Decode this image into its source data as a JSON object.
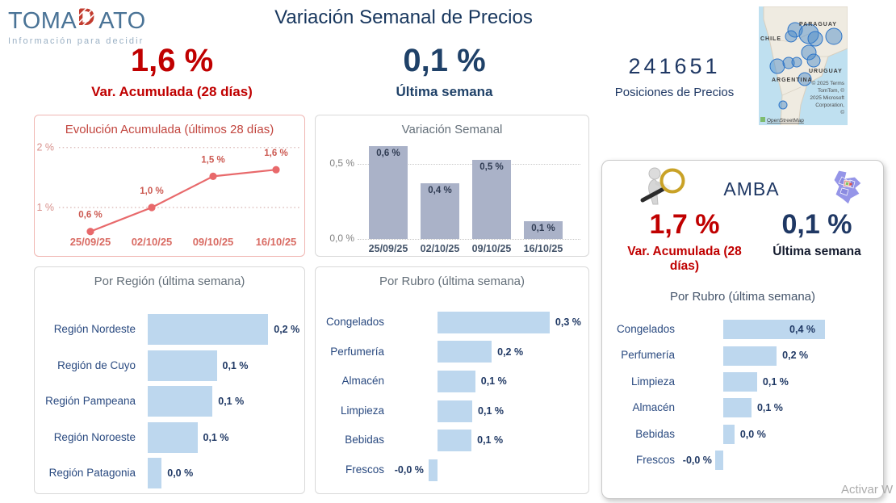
{
  "logo": {
    "text_pre": "TOMA",
    "text_d": "D",
    "text_post": "ATO",
    "tagline": "Información para decidir"
  },
  "header": {
    "title": "Variación Semanal de Precios"
  },
  "kpis": {
    "acumulada": {
      "value": "1,6 %",
      "label": "Var. Acumulada (28 días)"
    },
    "ultima_semana": {
      "value": "0,1 %",
      "label": "Última semana"
    },
    "posiciones": {
      "value": "241651",
      "label": "Posiciones de Precios"
    }
  },
  "map": {
    "countries": [
      "CHILE",
      "PARAGUAY",
      "URUGUAY",
      "ARGENTINA"
    ],
    "attribution": [
      "© 2025 Terms",
      "TomTom, ©",
      "2025 Microsoft",
      "Corporation,",
      "©"
    ],
    "osm": "OpenStreetMap"
  },
  "amba": {
    "title": "AMBA",
    "acumulada": {
      "value": "1,7 %",
      "label": "Var. Acumulada (28 días)"
    },
    "ultima_semana": {
      "value": "0,1 %",
      "label": "Última semana"
    }
  },
  "watermark": "Activar W",
  "chart_data": [
    {
      "id": "evolucion",
      "type": "line",
      "title": "Evolución Acumulada (últimos 28 días)",
      "x": [
        "25/09/25",
        "02/10/25",
        "09/10/25",
        "16/10/25"
      ],
      "values": [
        0.6,
        1.0,
        1.52,
        1.63
      ],
      "point_labels": [
        "0,6 %",
        "1,0 %",
        "1,5 %",
        "1,6 %"
      ],
      "yticks": [
        {
          "v": 1,
          "label": "1 %"
        },
        {
          "v": 2,
          "label": "2 %"
        }
      ],
      "ylim": [
        0.2,
        2.16
      ],
      "grid": true,
      "color": "#E8696B"
    },
    {
      "id": "semanal",
      "type": "bar",
      "title": "Variación Semanal",
      "categories": [
        "25/09/25",
        "02/10/25",
        "09/10/25",
        "16/10/25"
      ],
      "values": [
        0.62,
        0.37,
        0.53,
        0.12
      ],
      "bar_labels": [
        "0,6 %",
        "0,4 %",
        "0,5 %",
        "0,1 %"
      ],
      "yticks": [
        {
          "v": 0,
          "label": "0,0 %"
        },
        {
          "v": 0.5,
          "label": "0,5 %"
        }
      ],
      "grid": true,
      "color": "#AAB2C8"
    },
    {
      "id": "region",
      "type": "hbar",
      "title": "Por Región (última semana)",
      "categories": [
        "Región Nordeste",
        "Región de Cuyo",
        "Región Pampeana",
        "Región Noroeste",
        "Región Patagonia"
      ],
      "values": [
        0.199,
        0.114,
        0.107,
        0.082,
        0.023
      ],
      "bar_labels": [
        "0,2 %",
        "0,1 %",
        "0,1 %",
        "0,1 %",
        "0,0 %"
      ],
      "color": "#BDD7EE"
    },
    {
      "id": "rubro",
      "type": "hbar",
      "title": "Por Rubro (última semana)",
      "categories": [
        "Congelados",
        "Perfumería",
        "Almacén",
        "Limpieza",
        "Bebidas",
        "Frescos"
      ],
      "values": [
        0.3,
        0.145,
        0.101,
        0.093,
        0.091,
        -0.024
      ],
      "bar_labels": [
        "0,3 %",
        "0,2 %",
        "0,1 %",
        "0,1 %",
        "0,1 %",
        "-0,0 %"
      ],
      "color": "#BDD7EE"
    },
    {
      "id": "amba_rubro",
      "type": "hbar",
      "title": "Por Rubro (última semana)",
      "categories": [
        "Congelados",
        "Perfumería",
        "Limpieza",
        "Almacén",
        "Bebidas",
        "Frescos"
      ],
      "values": [
        0.4,
        0.21,
        0.133,
        0.111,
        0.044,
        -0.032
      ],
      "bar_labels": [
        "0,4 %",
        "0,2 %",
        "0,1 %",
        "0,1 %",
        "0,0 %",
        "-0,0 %"
      ],
      "labels_inside": [
        true,
        false,
        false,
        false,
        false,
        false
      ],
      "color": "#BDD7EE"
    }
  ]
}
